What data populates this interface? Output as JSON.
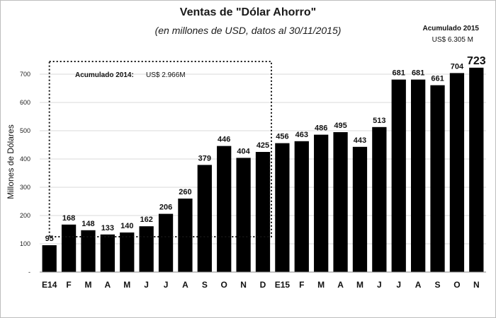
{
  "chart_data": {
    "type": "bar",
    "title": "Ventas de \"Dólar Ahorro\"",
    "subtitle": "(en millones de USD, datos al 30/11/2015)",
    "ylabel": "Millones de Dólares",
    "xlabel": "",
    "ylim": [
      0,
      760
    ],
    "yticks": [
      "-",
      "100",
      "200",
      "300",
      "400",
      "500",
      "600",
      "700"
    ],
    "ytick_values": [
      0,
      100,
      200,
      300,
      400,
      500,
      600,
      700
    ],
    "grid": true,
    "bar_color": "#000000",
    "categories": [
      "E14",
      "F",
      "M",
      "A",
      "M",
      "J",
      "J",
      "A",
      "S",
      "O",
      "N",
      "D",
      "E15",
      "F",
      "M",
      "A",
      "M",
      "J",
      "J",
      "A",
      "S",
      "O",
      "N"
    ],
    "values": [
      95,
      168,
      148,
      133,
      140,
      162,
      206,
      260,
      379,
      446,
      404,
      425,
      456,
      463,
      486,
      495,
      443,
      513,
      681,
      681,
      661,
      704,
      723
    ],
    "annotations": {
      "acum2014_label": "Acumulado 2014:",
      "acum2014_value": "US$ 2.966M",
      "acum2015_label": "Acumulado  2015",
      "acum2015_value": "US$ 6.305 M"
    }
  }
}
